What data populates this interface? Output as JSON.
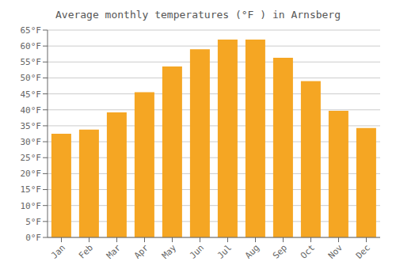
{
  "chart_data": {
    "type": "bar",
    "title": "Average monthly temperatures (°F ) in Arnsberg",
    "categories": [
      "Jan",
      "Feb",
      "Mar",
      "Apr",
      "May",
      "Jun",
      "Jul",
      "Aug",
      "Sep",
      "Oct",
      "Nov",
      "Dec"
    ],
    "values": [
      32.5,
      33.8,
      39.2,
      45.5,
      53.6,
      59.0,
      62.0,
      62.0,
      56.3,
      49.0,
      39.7,
      34.3
    ],
    "color": "#F5A623",
    "ylim": [
      0,
      65
    ],
    "yticks": [
      {
        "value": 0,
        "label": "0°F"
      },
      {
        "value": 5,
        "label": "5°F"
      },
      {
        "value": 10,
        "label": "10°F"
      },
      {
        "value": 15,
        "label": "15°F"
      },
      {
        "value": 20,
        "label": "20°F"
      },
      {
        "value": 25,
        "label": "25°F"
      },
      {
        "value": 30,
        "label": "30°F"
      },
      {
        "value": 35,
        "label": "35°F"
      },
      {
        "value": 40,
        "label": "40°F"
      },
      {
        "value": 45,
        "label": "45°F"
      },
      {
        "value": 50,
        "label": "50°F"
      },
      {
        "value": 55,
        "label": "55°F"
      },
      {
        "value": 60,
        "label": "60°F"
      },
      {
        "value": 65,
        "label": "65°F"
      }
    ],
    "grid": true
  }
}
